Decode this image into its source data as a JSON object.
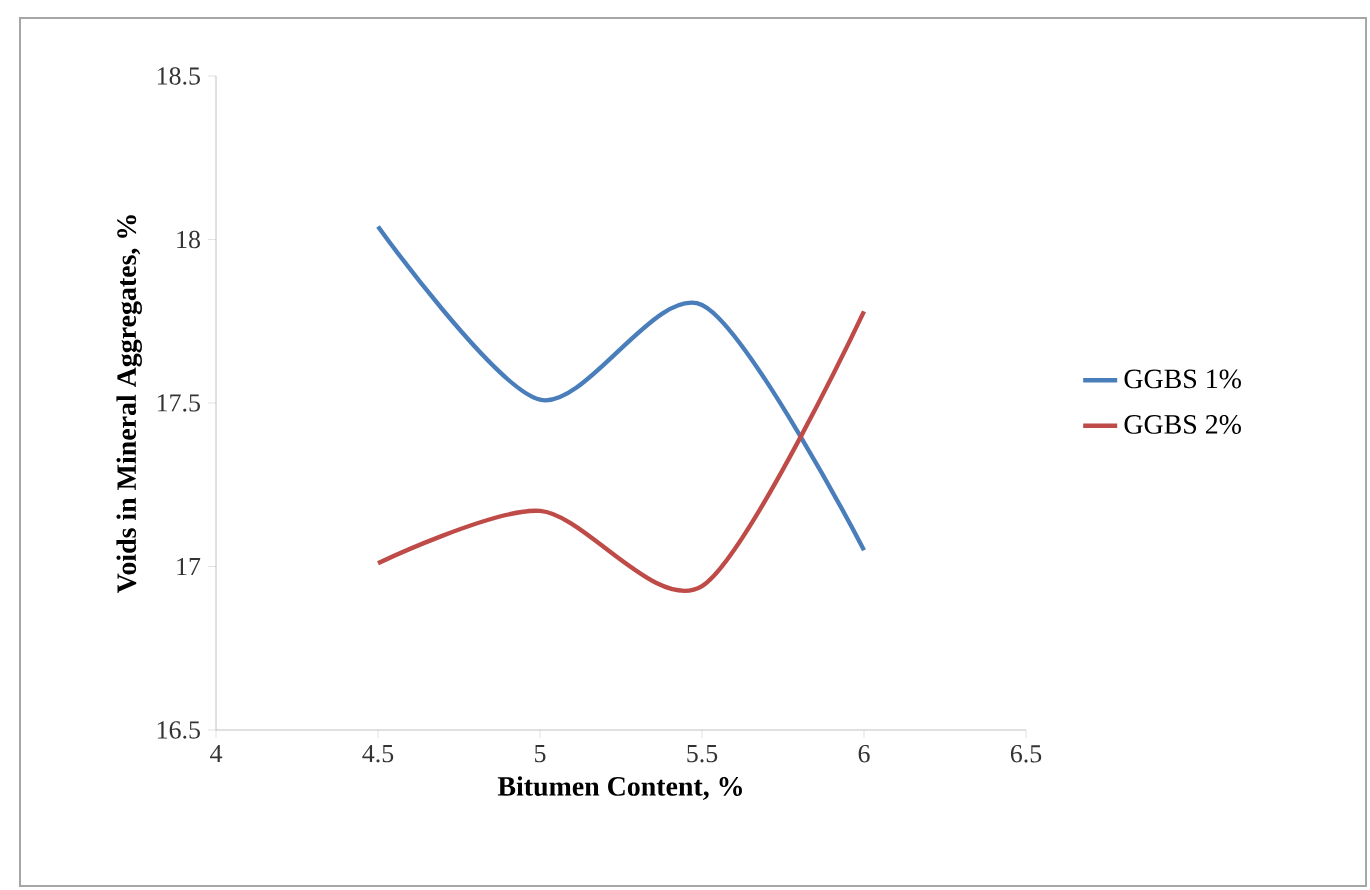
{
  "chart_data": {
    "type": "line",
    "xlabel": "Bitumen Content, %",
    "ylabel": "Voids in Mineral  Aggregates, %",
    "x": [
      4.5,
      5,
      5.5,
      6
    ],
    "xlim": [
      4,
      6.5
    ],
    "xticks": [
      4,
      4.5,
      5,
      5.5,
      6,
      6.5
    ],
    "ylim": [
      16.5,
      18.5
    ],
    "yticks": [
      16.5,
      17,
      17.5,
      18,
      18.5
    ],
    "grid": false,
    "legend": "right",
    "marker": "none",
    "line_style": "solid",
    "series": [
      {
        "name": "GGBS 1%",
        "color": "#4a7ebb",
        "values": [
          18.04,
          17.51,
          17.8,
          17.05
        ]
      },
      {
        "name": "GGBS 2%",
        "color": "#be4b48",
        "values": [
          17.01,
          17.17,
          16.94,
          17.78
        ]
      }
    ]
  }
}
